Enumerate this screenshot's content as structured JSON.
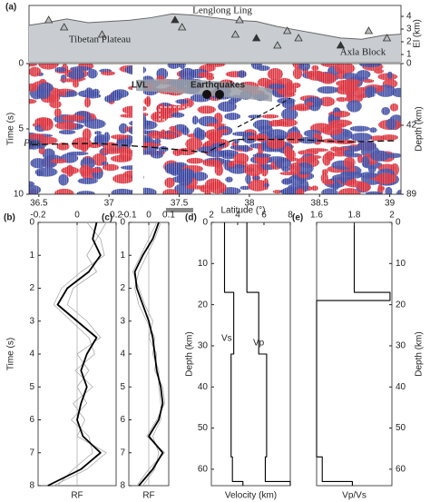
{
  "chart_data": [
    {
      "type": "area",
      "panel": "(a)",
      "ylabel": "El (km)",
      "color": "#c9cdd1",
      "x": [
        36.43,
        36.55,
        36.7,
        36.85,
        37.0,
        37.15,
        37.3,
        37.45,
        37.6,
        37.75,
        37.9,
        38.05,
        38.2,
        38.35,
        38.5,
        38.65,
        38.8,
        38.95,
        39.08
      ],
      "values": [
        3.3,
        3.5,
        3.8,
        3.5,
        3.6,
        3.7,
        3.9,
        4.2,
        4.1,
        3.9,
        3.7,
        3.6,
        3.2,
        2.9,
        2.6,
        2.3,
        2.2,
        2.5,
        2.6
      ],
      "stations": [
        36.57,
        36.68,
        36.95,
        37.47,
        37.52,
        37.9,
        37.93,
        38.05,
        38.2,
        38.27,
        38.35,
        38.65,
        38.85,
        38.98
      ],
      "xlim": [
        36.43,
        39.08
      ],
      "ylim": [
        0.43,
        4.86
      ],
      "yticks": [
        1,
        2,
        3,
        4
      ],
      "annotations": [
        "Lenglong Ling",
        "Tibetan Plateau",
        "Axla Block"
      ]
    },
    {
      "type": "section",
      "xlabel": "Latitude (°)",
      "ylabel": "Time (s)",
      "y2label": "Depth (km)",
      "xlim": [
        36.43,
        39.08
      ],
      "xticks": [
        36.5,
        37,
        37.5,
        38,
        38.5,
        39
      ],
      "ylim": [
        0,
        10
      ],
      "yticks": [
        0,
        5,
        10
      ],
      "y2lim": [
        0,
        89
      ],
      "y2ticks": [
        0,
        42,
        89
      ],
      "annotations": [
        "LVL",
        "Earthquakes",
        "Pms"
      ],
      "moho": {
        "x": [
          36.45,
          36.9,
          37.3,
          37.7,
          37.78,
          37.9,
          38.3,
          38.7,
          39.05
        ],
        "y": [
          6.2,
          6.1,
          6.4,
          6.8,
          6.3,
          5.8,
          5.8,
          6.0,
          5.9
        ]
      }
    },
    {
      "type": "trace",
      "panel": "(b)",
      "xlabel": "RF",
      "ylabel": "Time (s)",
      "xlim": [
        -0.2,
        0.2
      ],
      "xticks": [
        -0.2,
        0,
        0.2
      ],
      "ylim": [
        0,
        8
      ],
      "yticks": [
        0,
        1,
        2,
        3,
        4,
        5,
        6,
        7,
        8
      ],
      "y": [
        0,
        0.5,
        1,
        1.5,
        2,
        2.5,
        3,
        3.5,
        4,
        4.5,
        5,
        5.5,
        6,
        6.5,
        7,
        7.5,
        8
      ],
      "series": [
        {
          "color": "#000000",
          "values": [
            0.1,
            0.08,
            0.12,
            0.06,
            -0.05,
            -0.1,
            0.0,
            0.1,
            0.05,
            0.02,
            0.05,
            0.02,
            0.0,
            0.03,
            0.12,
            0.02,
            -0.15
          ]
        },
        {
          "color": "#aaaaaa",
          "values": [
            0.15,
            0.1,
            0.05,
            0.1,
            -0.02,
            -0.05,
            0.05,
            0.12,
            0.0,
            0.06,
            0.0,
            0.05,
            -0.03,
            0.06,
            0.08,
            -0.02,
            -0.1
          ]
        },
        {
          "color": "#aaaaaa",
          "values": [
            0.05,
            0.12,
            0.14,
            0.02,
            -0.08,
            -0.12,
            -0.03,
            0.06,
            0.09,
            -0.01,
            0.08,
            -0.02,
            0.04,
            0.0,
            0.15,
            0.05,
            -0.12
          ]
        }
      ]
    },
    {
      "type": "trace",
      "panel": "(c)",
      "xlabel": "RF",
      "xlim": [
        -0.1,
        0.1
      ],
      "xticks": [
        -0.1,
        0,
        0.1
      ],
      "ylim": [
        0,
        8
      ],
      "yticks": [
        0,
        1,
        2,
        3,
        4,
        5,
        6,
        7,
        8
      ],
      "y": [
        0,
        0.5,
        1,
        1.5,
        2,
        2.5,
        3,
        3.5,
        4,
        4.5,
        5,
        5.5,
        6,
        6.5,
        7,
        7.5,
        8
      ],
      "series": [
        {
          "color": "#000000",
          "values": [
            0.05,
            0.02,
            -0.03,
            -0.07,
            -0.06,
            -0.03,
            0.0,
            0.02,
            0.03,
            0.04,
            0.06,
            0.07,
            0.05,
            0.0,
            0.07,
            0.02,
            -0.05
          ]
        },
        {
          "color": "#aaaaaa",
          "values": [
            0.06,
            0.03,
            -0.01,
            -0.05,
            -0.07,
            -0.05,
            -0.01,
            0.03,
            0.02,
            0.05,
            0.05,
            0.06,
            0.06,
            0.02,
            0.05,
            0.03,
            -0.03
          ]
        },
        {
          "color": "#aaaaaa",
          "values": [
            0.04,
            0.0,
            -0.04,
            -0.08,
            -0.05,
            -0.02,
            0.02,
            0.0,
            0.04,
            0.03,
            0.07,
            0.08,
            0.04,
            -0.01,
            0.08,
            0.0,
            -0.06
          ]
        }
      ]
    },
    {
      "type": "step",
      "panel": "(d)",
      "xlabel": "Velocity (km)",
      "ylabel": "Depth (km)",
      "xlim": [
        2,
        8
      ],
      "xticks": [
        2,
        4,
        6,
        8
      ],
      "ylim": [
        0,
        64
      ],
      "yticks": [
        0,
        10,
        20,
        30,
        40,
        50,
        60
      ],
      "y": [
        0,
        17,
        17,
        32,
        32,
        57,
        57,
        63,
        63,
        64
      ],
      "series": [
        {
          "name": "Vs",
          "color": "#000000",
          "values": [
            3.0,
            3.0,
            3.7,
            3.7,
            3.5,
            3.5,
            3.6,
            3.6,
            4.4,
            4.4
          ]
        },
        {
          "name": "Vp",
          "color": "#000000",
          "values": [
            4.7,
            4.7,
            5.6,
            5.6,
            6.2,
            6.2,
            6.1,
            6.1,
            8.0,
            8.0
          ]
        }
      ]
    },
    {
      "type": "step",
      "panel": "(e)",
      "xlabel": "Vp/Vs",
      "ylabel": "Depth (km)",
      "y_axis_side": "right",
      "xlim": [
        1.6,
        2.0
      ],
      "xticks": [
        1.6,
        1.8,
        2
      ],
      "ylim": [
        0,
        64
      ],
      "yticks": [
        0,
        10,
        20,
        30,
        40,
        50,
        60
      ],
      "y": [
        0,
        17,
        17,
        19,
        19,
        57,
        57,
        63,
        63,
        64
      ],
      "series": [
        {
          "color": "#000000",
          "values": [
            1.8,
            1.8,
            1.99,
            1.99,
            1.6,
            1.6,
            1.63,
            1.63,
            1.79,
            1.79
          ]
        }
      ]
    }
  ]
}
